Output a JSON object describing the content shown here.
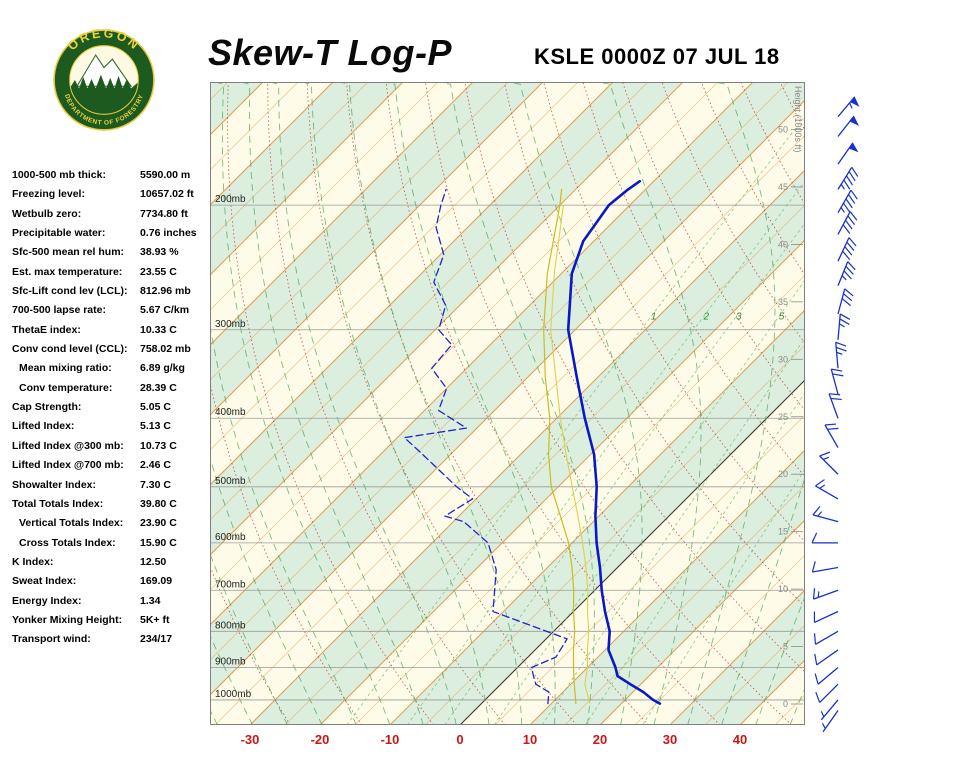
{
  "header": {
    "title": "Skew-T Log-P",
    "station": "KSLE 0000Z 07 JUL 18",
    "logo": {
      "top_text": "OREGON",
      "bottom_text": "DEPARTMENT OF FORESTRY"
    }
  },
  "stats": {
    "items": [
      {
        "label": "1000-500 mb thick:",
        "value": "5590.00 m",
        "indent": false
      },
      {
        "label": "Freezing level:",
        "value": "10657.02 ft",
        "indent": false
      },
      {
        "label": "Wetbulb zero:",
        "value": "7734.80 ft",
        "indent": false
      },
      {
        "label": "Precipitable water:",
        "value": "0.76 inches",
        "indent": false
      },
      {
        "label": "Sfc-500 mean rel hum:",
        "value": "38.93 %",
        "indent": false
      },
      {
        "label": "Est. max temperature:",
        "value": "23.55 C",
        "indent": false
      },
      {
        "label": "Sfc-Lift cond lev (LCL):",
        "value": "812.96 mb",
        "indent": false
      },
      {
        "label": "700-500 lapse rate:",
        "value": "5.67 C/km",
        "indent": false
      },
      {
        "label": "ThetaE index:",
        "value": "10.33 C",
        "indent": false
      },
      {
        "label": "Conv cond level (CCL):",
        "value": "758.02 mb",
        "indent": false
      },
      {
        "label": "Mean mixing ratio:",
        "value": "6.89 g/kg",
        "indent": true
      },
      {
        "label": "Conv temperature:",
        "value": "28.39 C",
        "indent": true
      },
      {
        "label": "Cap Strength:",
        "value": "5.05 C",
        "indent": false
      },
      {
        "label": "Lifted Index:",
        "value": "5.13 C",
        "indent": false
      },
      {
        "label": "Lifted Index @300 mb:",
        "value": "10.73 C",
        "indent": false
      },
      {
        "label": "Lifted Index @700 mb:",
        "value": "2.46 C",
        "indent": false
      },
      {
        "label": "Showalter Index:",
        "value": "7.30 C",
        "indent": false
      },
      {
        "label": "Total Totals Index:",
        "value": "39.80 C",
        "indent": false
      },
      {
        "label": "Vertical Totals Index:",
        "value": "23.90 C",
        "indent": true
      },
      {
        "label": "Cross Totals Index:",
        "value": "15.90 C",
        "indent": true
      },
      {
        "label": "K Index:",
        "value": "12.50",
        "indent": false
      },
      {
        "label": "Sweat Index:",
        "value": "169.09",
        "indent": false
      },
      {
        "label": "Energy Index:",
        "value": "1.34",
        "indent": false
      },
      {
        "label": "Yonker Mixing Height:",
        "value": "5K+ ft",
        "indent": false
      },
      {
        "label": "Transport wind:",
        "value": "234/17",
        "indent": false
      }
    ]
  },
  "chart_data": {
    "type": "line",
    "variant": "skew-t-log-p",
    "title": "Skew-T Log-P",
    "station_line": "KSLE 0000Z 07 JUL 18",
    "pressure_axis": {
      "top_mb": 134,
      "bottom_mb": 1085,
      "gridlines_mb": [
        200,
        300,
        400,
        500,
        600,
        700,
        800,
        900,
        1000
      ],
      "label_suffix": "mb"
    },
    "temp_axis": {
      "ticks_c": [
        -30,
        -20,
        -10,
        0,
        10,
        20,
        30,
        40
      ],
      "color": "#cc1515"
    },
    "height_axis": {
      "ticks_kft": [
        0,
        5,
        10,
        15,
        20,
        25,
        30,
        35,
        40,
        45,
        50
      ],
      "label": "Height (1000s ft)"
    },
    "isotherms": {
      "step_c": 5,
      "band_step_c": 10
    },
    "dry_adiabats_c": {
      "start": -30,
      "end": 160,
      "step": 10
    },
    "moist_adiabats_c": {
      "start": -40,
      "end": 45,
      "step": 5
    },
    "mixing_ratio_gkg": [
      1,
      2,
      3,
      5,
      8,
      12,
      20
    ],
    "mixing_ratio_labels": {
      "values": [
        1,
        2,
        3,
        5
      ],
      "at_mb": 290
    },
    "series": [
      {
        "name": "temperature",
        "color": "#0a18c8",
        "width": 2.6,
        "dash": "",
        "points_p_t": [
          [
            1012,
            25.5
          ],
          [
            1000,
            24.0
          ],
          [
            975,
            21.5
          ],
          [
            950,
            18.5
          ],
          [
            925,
            15.5
          ],
          [
            900,
            14.0
          ],
          [
            850,
            10.5
          ],
          [
            800,
            8.0
          ],
          [
            750,
            4.5
          ],
          [
            700,
            1.0
          ],
          [
            650,
            -2.5
          ],
          [
            600,
            -6.5
          ],
          [
            550,
            -10.5
          ],
          [
            500,
            -14.5
          ],
          [
            450,
            -19.5
          ],
          [
            400,
            -26.0
          ],
          [
            350,
            -33.0
          ],
          [
            300,
            -41.0
          ],
          [
            250,
            -48.5
          ],
          [
            225,
            -51.5
          ],
          [
            200,
            -53.0
          ],
          [
            190,
            -52.5
          ],
          [
            185,
            -52.0
          ]
        ]
      },
      {
        "name": "dewpoint",
        "color": "#2026cc",
        "width": 1.3,
        "dash": "7 4",
        "points_p_t": [
          [
            1012,
            9.5
          ],
          [
            975,
            8.0
          ],
          [
            950,
            5.0
          ],
          [
            925,
            3.5
          ],
          [
            900,
            2.0
          ],
          [
            870,
            4.0
          ],
          [
            820,
            3.0
          ],
          [
            750,
            -11.5
          ],
          [
            655,
            -17.0
          ],
          [
            600,
            -22.0
          ],
          [
            560,
            -28.5
          ],
          [
            550,
            -32.0
          ],
          [
            520,
            -30.5
          ],
          [
            500,
            -34.5
          ],
          [
            450,
            -44.0
          ],
          [
            426,
            -49.0
          ],
          [
            413,
            -41.5
          ],
          [
            390,
            -48.0
          ],
          [
            363,
            -50.0
          ],
          [
            340,
            -55.0
          ],
          [
            315,
            -55.5
          ],
          [
            300,
            -59.5
          ],
          [
            277,
            -62.0
          ],
          [
            257,
            -67.0
          ],
          [
            235,
            -69.5
          ],
          [
            215,
            -74.5
          ],
          [
            200,
            -77.0
          ],
          [
            190,
            -78.5
          ]
        ]
      },
      {
        "name": "wetbulb",
        "color": "#cdbc1d",
        "width": 1.2,
        "dash": "",
        "points_p_t": [
          [
            1012,
            13.5
          ],
          [
            950,
            10.5
          ],
          [
            900,
            8.0
          ],
          [
            850,
            5.5
          ],
          [
            800,
            3.0
          ],
          [
            750,
            0.0
          ],
          [
            700,
            -3.0
          ],
          [
            650,
            -6.5
          ],
          [
            600,
            -10.5
          ],
          [
            550,
            -15.5
          ],
          [
            500,
            -21.0
          ],
          [
            450,
            -26.0
          ],
          [
            400,
            -31.0
          ],
          [
            350,
            -37.5
          ],
          [
            300,
            -44.5
          ],
          [
            250,
            -52.0
          ],
          [
            200,
            -60.0
          ],
          [
            190,
            -62.0
          ]
        ]
      },
      {
        "name": "parcel",
        "color": "#e0d04a",
        "width": 1.1,
        "dash": "",
        "points_p_t": [
          [
            1012,
            15.5
          ],
          [
            950,
            12.0
          ],
          [
            900,
            10.0
          ],
          [
            850,
            7.5
          ],
          [
            800,
            5.0
          ],
          [
            750,
            2.0
          ],
          [
            700,
            -1.0
          ],
          [
            650,
            -4.5
          ],
          [
            600,
            -8.5
          ],
          [
            550,
            -13.0
          ],
          [
            500,
            -18.0
          ],
          [
            450,
            -23.5
          ],
          [
            400,
            -29.5
          ],
          [
            350,
            -36.0
          ],
          [
            300,
            -43.5
          ],
          [
            250,
            -51.0
          ],
          [
            200,
            -59.5
          ]
        ]
      }
    ],
    "wind_barbs_p_dir_kt": [
      [
        1035,
        215,
        5
      ],
      [
        1000,
        220,
        7
      ],
      [
        950,
        225,
        8
      ],
      [
        900,
        230,
        10
      ],
      [
        850,
        235,
        10
      ],
      [
        800,
        240,
        12
      ],
      [
        750,
        245,
        12
      ],
      [
        700,
        250,
        15
      ],
      [
        650,
        260,
        12
      ],
      [
        600,
        270,
        12
      ],
      [
        560,
        285,
        15
      ],
      [
        520,
        300,
        15
      ],
      [
        480,
        315,
        15
      ],
      [
        440,
        330,
        20
      ],
      [
        400,
        340,
        20
      ],
      [
        370,
        345,
        20
      ],
      [
        340,
        355,
        25
      ],
      [
        310,
        5,
        25
      ],
      [
        285,
        15,
        30
      ],
      [
        260,
        22,
        35
      ],
      [
        240,
        25,
        40
      ],
      [
        220,
        28,
        40
      ],
      [
        205,
        30,
        45
      ],
      [
        190,
        32,
        45
      ],
      [
        175,
        35,
        50
      ],
      [
        160,
        38,
        50
      ],
      [
        150,
        40,
        55
      ]
    ],
    "colors": {
      "band_green": "#dceedd",
      "band_cream": "#fefce9",
      "isotherm": "#e2913f",
      "zero_line": "#3a3a3a",
      "dry_adiabat": "#c03030",
      "moist_adiabat": "#2f9e44",
      "mixing_ratio": "#6cbb6c",
      "mixing_label": "#2e8b2e",
      "grid": "#9a9a9a",
      "frame": "#808080",
      "pressure_label": "#222222",
      "height_label": "#8a8a8a",
      "wind": "#1830cc"
    }
  }
}
